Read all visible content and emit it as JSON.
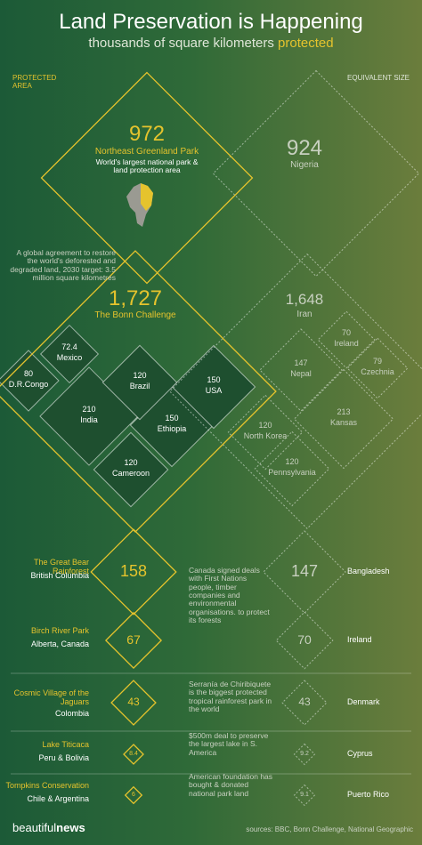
{
  "header": {
    "title": "Land Preservation is Happening",
    "subtitle": "thousands of square kilometers",
    "subtitle_highlight": "protected"
  },
  "columns": {
    "left": "PROTECTED AREA",
    "right": "EQUIVALENT SIZE"
  },
  "feature": {
    "value": 972,
    "name": "Northeast Greenland Park",
    "description": "World's largest national park & land protection area",
    "equivalent": {
      "value": 924,
      "name": "Nigeria"
    }
  },
  "bonn": {
    "note": "A global agreement to restore the world's deforested and degraded land, 2030 target: 3.5 million square kilometres",
    "value": {
      "value": 1727,
      "label": "1,727"
    },
    "name": "The Bonn Challenge",
    "equivalent": {
      "value": {
        "value": 1648,
        "label": "1,648"
      },
      "name": "Iran"
    },
    "countries": [
      {
        "value": 72.4,
        "name": "Mexico"
      },
      {
        "value": 80,
        "name": "D.R.Congo"
      },
      {
        "value": 120,
        "name": "Brazil"
      },
      {
        "value": 150,
        "name": "USA"
      },
      {
        "value": 210,
        "name": "India"
      },
      {
        "value": 150,
        "name": "Ethiopia"
      },
      {
        "value": 120,
        "name": "Cameroon"
      }
    ],
    "equivalents": [
      {
        "value": 70,
        "name": "Ireland"
      },
      {
        "value": 147,
        "name": "Nepal"
      },
      {
        "value": 79,
        "name": "Czechnia"
      },
      {
        "value": 213,
        "name": "Kansas"
      },
      {
        "value": 120,
        "name": "North Korea"
      },
      {
        "value": 120,
        "name": "Pennsylvania"
      }
    ]
  },
  "rows": [
    {
      "name": "The Great Bear Rainforest",
      "place": "British Columbia",
      "value": 158,
      "equivalent": {
        "value": 147,
        "name": "Bangladesh"
      }
    },
    {
      "name": "Birch River Park",
      "place": "Alberta, Canada",
      "value": 67,
      "equivalent": {
        "value": 70,
        "name": "Ireland"
      }
    },
    {
      "name": "Cosmic Village of the Jaguars",
      "place": "Colombia",
      "value": 43,
      "note": "Serranía de Chiribiquete is the biggest protected tropical rainforest park in the world",
      "equivalent": {
        "value": 43,
        "name": "Denmark"
      }
    },
    {
      "name": "Lake Titicaca",
      "place": "Peru & Bolivia",
      "value": 8.4,
      "note": "$500m deal to preserve the largest lake in S. America",
      "equivalent": {
        "value": 9.2,
        "name": "Cyprus"
      }
    },
    {
      "name": "Tompkins Conservation",
      "place": "Chile & Argentina",
      "value": 6,
      "note": "American foundation has bought & donated national park land",
      "equivalent": {
        "value": 9.1,
        "name": "Puerto Rico"
      }
    }
  ],
  "canada_note": "Canada signed deals with First Nations people, timber companies and environmental organisations. to protect its forests",
  "footer": {
    "brand": "beautiful",
    "brand_bold": "news",
    "sources": "sources: BBC, Bonn Challenge, National Geographic"
  }
}
